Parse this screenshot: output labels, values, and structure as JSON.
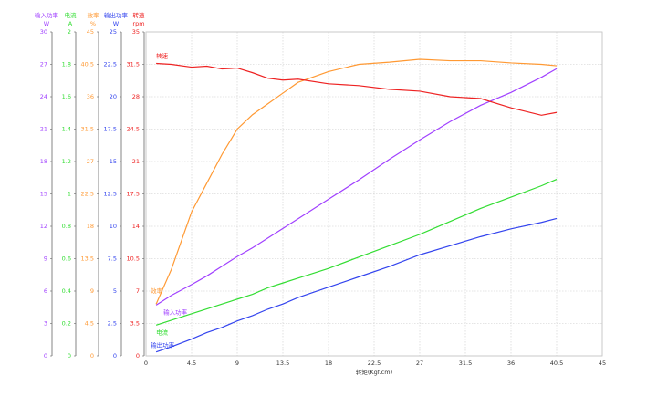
{
  "chart_data": {
    "type": "line",
    "xlabel": "转矩(Kgf.cm)",
    "xlim": [
      0,
      45
    ],
    "xticks": [
      0,
      4.5,
      9,
      13.5,
      18,
      22.5,
      27,
      31.5,
      36,
      40.5,
      45
    ],
    "grid": true,
    "x": [
      1,
      2.5,
      4.5,
      6,
      7.5,
      9,
      10.5,
      12,
      13.5,
      15,
      18,
      21,
      24,
      27,
      30,
      33,
      36,
      39,
      40.5
    ],
    "series": [
      {
        "name": "输入功率",
        "unit": "W",
        "color": "#a040ff",
        "ylim": [
          0,
          30
        ],
        "yticks": [
          0,
          3,
          6,
          9,
          12,
          15,
          18,
          21,
          24,
          27,
          30
        ],
        "values": [
          4.7,
          5.6,
          6.6,
          7.4,
          8.3,
          9.2,
          10.0,
          10.9,
          11.8,
          12.7,
          14.5,
          16.3,
          18.2,
          20.0,
          21.7,
          23.2,
          24.4,
          25.8,
          26.6
        ]
      },
      {
        "name": "电流",
        "unit": "A",
        "color": "#33dd33",
        "ylim": [
          0,
          2
        ],
        "yticks": [
          0,
          0.2,
          0.4,
          0.6,
          0.8,
          1,
          1.2,
          1.4,
          1.6,
          1.8,
          2
        ],
        "values": [
          0.19,
          0.22,
          0.26,
          0.29,
          0.32,
          0.35,
          0.38,
          0.42,
          0.45,
          0.48,
          0.54,
          0.61,
          0.68,
          0.75,
          0.83,
          0.91,
          0.98,
          1.05,
          1.09
        ]
      },
      {
        "name": "效率",
        "unit": "%",
        "color": "#ff9933",
        "ylim": [
          0,
          45
        ],
        "yticks": [
          0,
          4.5,
          9,
          13.5,
          18,
          22.5,
          27,
          31.5,
          36,
          40.5,
          45
        ],
        "values": [
          7.2,
          12,
          20,
          24,
          28,
          31.5,
          33.5,
          35,
          36.5,
          38,
          39.5,
          40.5,
          40.8,
          41.2,
          41,
          41,
          40.7,
          40.5,
          40.3
        ]
      },
      {
        "name": "输出功率",
        "unit": "W",
        "color": "#3344ee",
        "ylim": [
          0,
          25
        ],
        "yticks": [
          0,
          2.5,
          5,
          7.5,
          10,
          12.5,
          15,
          17.5,
          20,
          22.5,
          25
        ],
        "values": [
          0.3,
          0.7,
          1.3,
          1.8,
          2.2,
          2.7,
          3.1,
          3.6,
          4.0,
          4.5,
          5.3,
          6.1,
          6.9,
          7.8,
          8.5,
          9.2,
          9.8,
          10.3,
          10.6
        ]
      },
      {
        "name": "转速",
        "unit": "rpm",
        "color": "#ee2222",
        "ylim": [
          0,
          35
        ],
        "yticks": [
          0,
          3.5,
          7,
          10.5,
          14,
          17.5,
          21,
          24.5,
          28,
          31.5,
          35
        ],
        "values": [
          31.6,
          31.5,
          31.2,
          31.3,
          31.0,
          31.1,
          30.6,
          30.0,
          29.8,
          29.9,
          29.4,
          29.2,
          28.8,
          28.6,
          28.0,
          27.8,
          26.8,
          26.0,
          26.3
        ]
      }
    ]
  }
}
